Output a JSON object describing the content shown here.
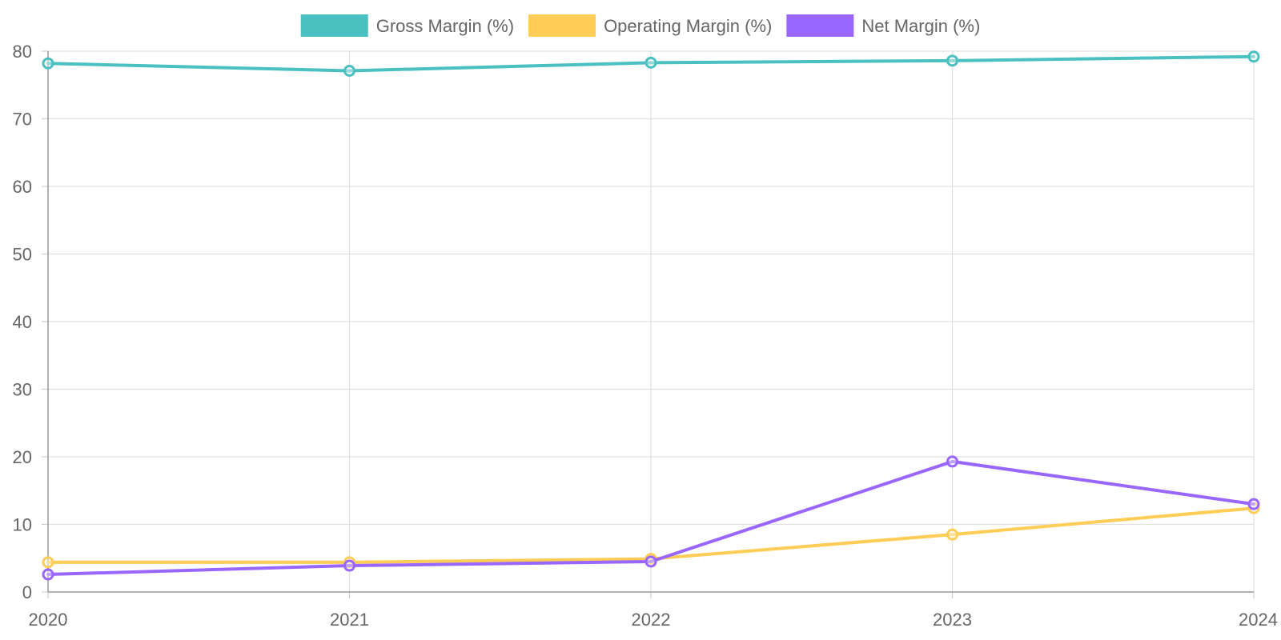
{
  "chart_data": {
    "type": "line",
    "title": "",
    "xlabel": "",
    "ylabel": "",
    "categories": [
      "2020",
      "2021",
      "2022",
      "2023",
      "2024"
    ],
    "ylim": [
      0,
      80
    ],
    "yticks": [
      0,
      10,
      20,
      30,
      40,
      50,
      60,
      70,
      80
    ],
    "grid": true,
    "legend_position": "top-center",
    "series": [
      {
        "name": "Gross Margin (%)",
        "color": "#4bc0c0",
        "values": [
          78.2,
          77.1,
          78.3,
          78.6,
          79.2
        ]
      },
      {
        "name": "Operating Margin (%)",
        "color": "#ffcd56",
        "values": [
          4.4,
          4.4,
          4.9,
          8.5,
          12.4
        ]
      },
      {
        "name": "Net Margin (%)",
        "color": "#9966ff",
        "values": [
          2.6,
          3.9,
          4.5,
          19.3,
          13.0
        ]
      }
    ]
  }
}
